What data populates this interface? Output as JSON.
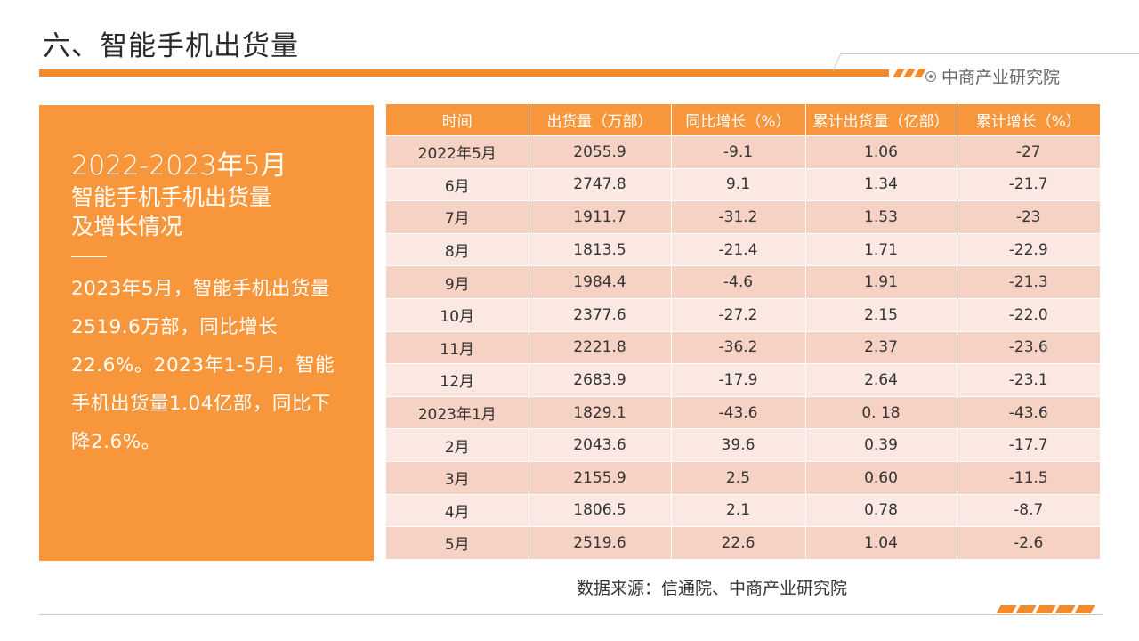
{
  "header": {
    "title": "六、智能手机出货量",
    "brand": "中商产业研究院",
    "accent_color": "#f28a2e"
  },
  "panel": {
    "heading": "2022-2023年5月",
    "subtitle_line1": "智能手机手机出货量",
    "subtitle_line2": "及增长情况",
    "paragraph": "2023年5月，智能手机出货量2519.6万部，同比增长22.6%。2023年1-5月，智能手机出货量1.04亿部，同比下降2.6%。",
    "background_color": "#f7963a"
  },
  "table": {
    "columns": [
      "时间",
      "出货量（万部）",
      "同比增长（%）",
      "累计出货量（亿部）",
      "累计增长（%）"
    ],
    "rows": [
      [
        "2022年5月",
        "2055.9",
        "-9.1",
        "1.06",
        "-27"
      ],
      [
        "6月",
        "2747.8",
        "9.1",
        "1.34",
        "-21.7"
      ],
      [
        "7月",
        "1911.7",
        "-31.2",
        "1.53",
        "-23"
      ],
      [
        "8月",
        "1813.5",
        "-21.4",
        "1.71",
        "-22.9"
      ],
      [
        "9月",
        "1984.4",
        "-4.6",
        "1.91",
        "-21.3"
      ],
      [
        "10月",
        "2377.6",
        "-27.2",
        "2.15",
        "-22.0"
      ],
      [
        "11月",
        "2221.8",
        "-36.2",
        "2.37",
        "-23.6"
      ],
      [
        "12月",
        "2683.9",
        "-17.9",
        "2.64",
        "-23.1"
      ],
      [
        "2023年1月",
        "1829.1",
        "-43.6",
        "0. 18",
        "-43.6"
      ],
      [
        "2月",
        "2043.6",
        "39.6",
        "0.39",
        "-17.7"
      ],
      [
        "3月",
        "2155.9",
        "2.5",
        "0.60",
        "-11.5"
      ],
      [
        "4月",
        "1806.5",
        "2.1",
        "0.78",
        "-8.7"
      ],
      [
        "5月",
        "2519.6",
        "22.6",
        "1.04",
        "-2.6"
      ]
    ]
  },
  "footer": {
    "source": "数据来源：信通院、中商产业研究院"
  }
}
